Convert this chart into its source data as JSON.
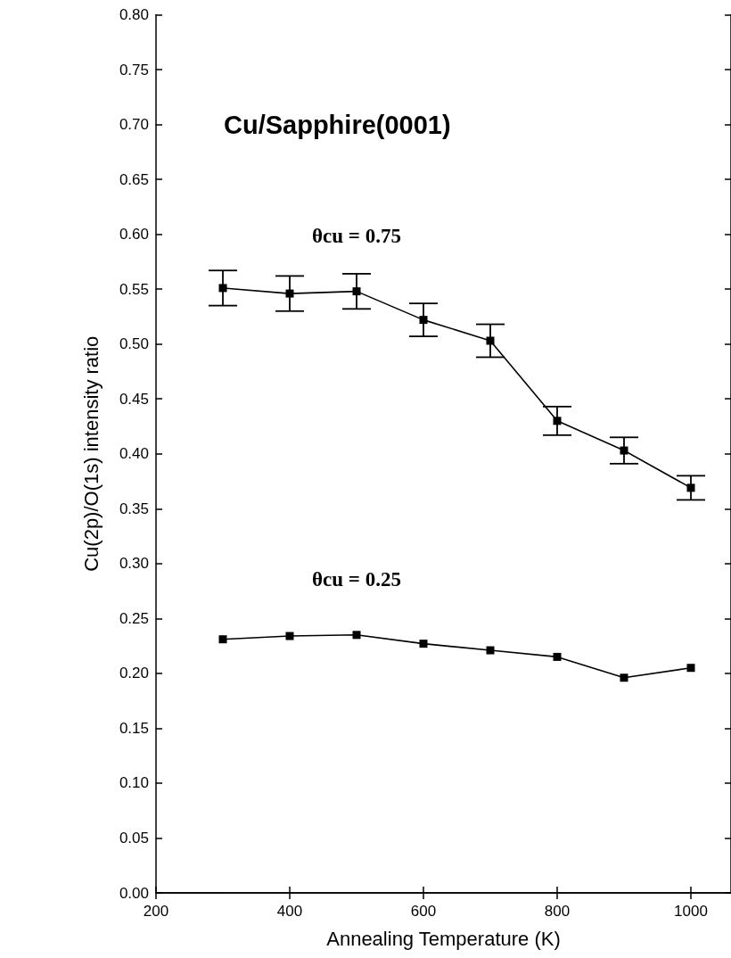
{
  "chart_data": {
    "type": "line",
    "title": "Cu/Sapphire(0001)",
    "xlabel": "Annealing Temperature (K)",
    "ylabel": "Cu(2p)/O(1s) intensity ratio",
    "x": [
      300,
      400,
      500,
      600,
      700,
      800,
      900,
      1000
    ],
    "series": [
      {
        "name": "θcu = 0.75",
        "color": "#000000",
        "values": [
          0.551,
          0.546,
          0.548,
          0.522,
          0.503,
          0.43,
          0.403,
          0.369
        ],
        "errors": [
          0.016,
          0.016,
          0.016,
          0.015,
          0.015,
          0.013,
          0.012,
          0.011
        ]
      },
      {
        "name": "θcu = 0.25",
        "color": "#000000",
        "values": [
          0.231,
          0.234,
          0.235,
          0.227,
          0.221,
          0.215,
          0.196,
          0.205
        ]
      }
    ],
    "xlim": [
      200,
      1060
    ],
    "xticks": [
      200,
      400,
      600,
      800,
      1000
    ],
    "ylim": [
      0,
      0.8
    ],
    "yticks": [
      {
        "value": 0,
        "label": "0.00"
      },
      {
        "value": 0.05,
        "label": "0.05"
      },
      {
        "value": 0.1,
        "label": "0.10"
      },
      {
        "value": 0.15,
        "label": "0.15"
      },
      {
        "value": 0.2,
        "label": "0.20"
      },
      {
        "value": 0.25,
        "label": "0.25"
      },
      {
        "value": 0.3,
        "label": "0.30"
      },
      {
        "value": 0.35,
        "label": "0.35"
      },
      {
        "value": 0.4,
        "label": "0.40"
      },
      {
        "value": 0.45,
        "label": "0.45"
      },
      {
        "value": 0.5,
        "label": "0.50"
      },
      {
        "value": 0.55,
        "label": "0.55"
      },
      {
        "value": 0.6,
        "label": "0.60"
      },
      {
        "value": 0.65,
        "label": "0.65"
      },
      {
        "value": 0.7,
        "label": "0.70"
      },
      {
        "value": 0.75,
        "label": "0.75"
      },
      {
        "value": 0.8,
        "label": "0.80"
      }
    ],
    "grid": false,
    "marker": "square",
    "line_style": "solid"
  }
}
